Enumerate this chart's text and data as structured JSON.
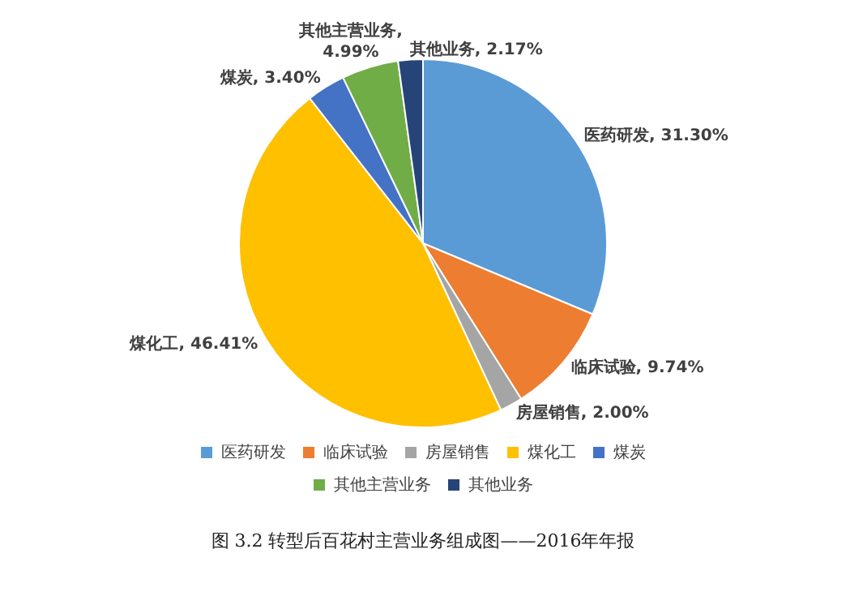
{
  "chart_data": {
    "type": "pie",
    "categories": [
      "医药研发",
      "临床试验",
      "房屋销售",
      "煤化工",
      "煤炭",
      "其他主营业务",
      "其他业务"
    ],
    "values": [
      31.3,
      9.74,
      2.0,
      46.41,
      3.4,
      4.99,
      2.17
    ],
    "colors": [
      "#5b9bd5",
      "#ed7d31",
      "#a5a5a5",
      "#ffc000",
      "#4472c4",
      "#70ad47",
      "#264478"
    ],
    "value_labels": [
      "医药研发, 31.30%",
      "临床试验, 9.74%",
      "房屋销售, 2.00%",
      "煤化工, 46.41%",
      "煤炭, 3.40%",
      "其他主营业务, 4.99%",
      "其他业务, 2.17%"
    ],
    "legend": "bottom",
    "annotations": [
      "图 3.2 转型后百花村主营业务组成图——2016年年报"
    ]
  }
}
